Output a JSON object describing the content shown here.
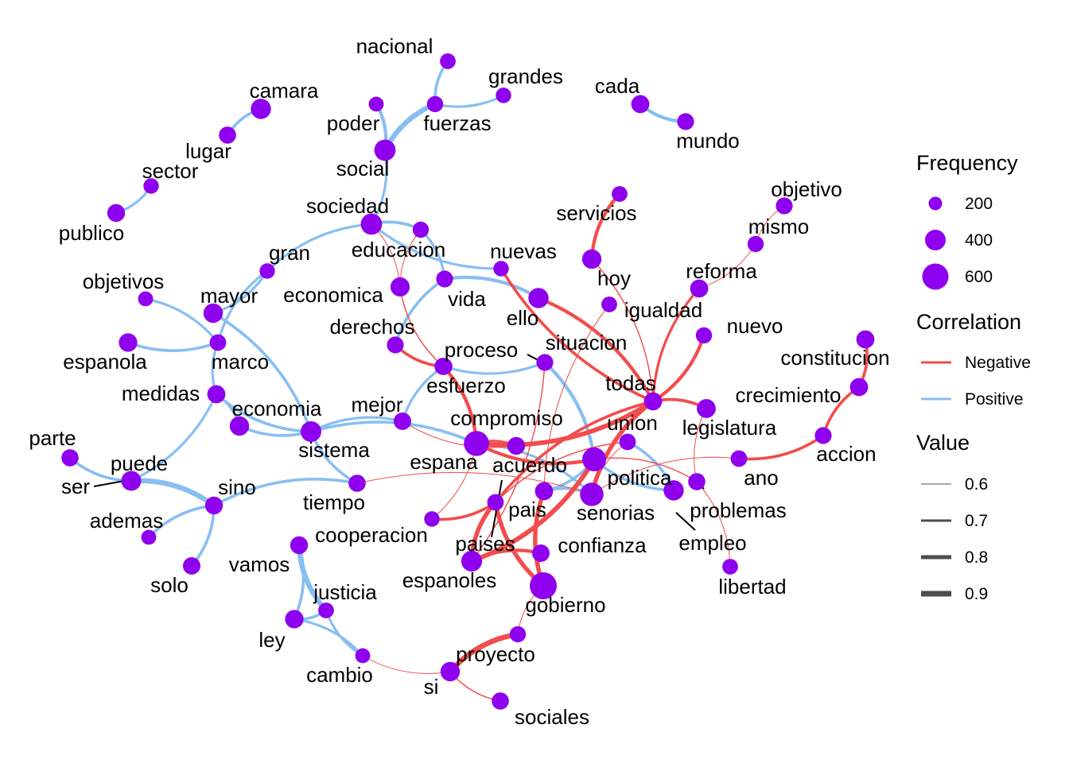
{
  "colors": {
    "node": "#8f00ee",
    "negative": "#f24c4c",
    "positive": "#88bff2",
    "leader": "#000000",
    "legend_line": "#4d4d4d"
  },
  "legend": {
    "frequency": {
      "title": "Frequency",
      "items": [
        "200",
        "400",
        "600"
      ]
    },
    "correlation": {
      "title": "Correlation",
      "items": [
        "Negative",
        "Positive"
      ]
    },
    "value": {
      "title": "Value",
      "items": [
        "0.6",
        "0.7",
        "0.8",
        "0.9"
      ]
    }
  },
  "nodes": [
    {
      "id": "nacional",
      "label": "nacional",
      "freq": 80
    },
    {
      "id": "grandes",
      "label": "grandes",
      "freq": 70
    },
    {
      "id": "fuerzas",
      "label": "fuerzas",
      "freq": 90
    },
    {
      "id": "poder",
      "label": "poder",
      "freq": 60
    },
    {
      "id": "social",
      "label": "social",
      "freq": 280
    },
    {
      "id": "camara",
      "label": "camara",
      "freq": 230
    },
    {
      "id": "lugar",
      "label": "lugar",
      "freq": 120
    },
    {
      "id": "sector",
      "label": "sector",
      "freq": 70
    },
    {
      "id": "publico",
      "label": "publico",
      "freq": 140
    },
    {
      "id": "cada",
      "label": "cada",
      "freq": 150
    },
    {
      "id": "mundo",
      "label": "mundo",
      "freq": 110
    },
    {
      "id": "sociedad",
      "label": "sociedad",
      "freq": 280
    },
    {
      "id": "gran",
      "label": "gran",
      "freq": 70
    },
    {
      "id": "educacion",
      "label": "educacion",
      "freq": 90
    },
    {
      "id": "nuevas",
      "label": "nuevas",
      "freq": 70
    },
    {
      "id": "servicios",
      "label": "servicios",
      "freq": 80
    },
    {
      "id": "objetivo",
      "label": "objetivo",
      "freq": 110
    },
    {
      "id": "mismo",
      "label": "mismo",
      "freq": 90
    },
    {
      "id": "hoy",
      "label": "hoy",
      "freq": 200
    },
    {
      "id": "reforma",
      "label": "reforma",
      "freq": 150
    },
    {
      "id": "igualdad",
      "label": "igualdad",
      "freq": 80
    },
    {
      "id": "nuevo",
      "label": "nuevo",
      "freq": 90
    },
    {
      "id": "objetivos",
      "label": "objetivos",
      "freq": 60
    },
    {
      "id": "mayor",
      "label": "mayor",
      "freq": 200
    },
    {
      "id": "economica",
      "label": "economica",
      "freq": 190
    },
    {
      "id": "vida",
      "label": "vida",
      "freq": 110
    },
    {
      "id": "ello",
      "label": "ello",
      "freq": 230
    },
    {
      "id": "derechos",
      "label": "derechos",
      "freq": 110
    },
    {
      "id": "espanola",
      "label": "espanola",
      "freq": 160
    },
    {
      "id": "marco",
      "label": "marco",
      "freq": 100
    },
    {
      "id": "proceso",
      "label": "proceso",
      "freq": 120
    },
    {
      "id": "situacion",
      "label": "situacion",
      "freq": 110
    },
    {
      "id": "constitucion",
      "label": "constitucion",
      "freq": 150
    },
    {
      "id": "todas",
      "label": "todas",
      "freq": 150
    },
    {
      "id": "esfuerzo",
      "label": "esfuerzo",
      "freq": 120
    },
    {
      "id": "medidas",
      "label": "medidas",
      "freq": 150
    },
    {
      "id": "crecimiento",
      "label": "crecimiento",
      "freq": 150
    },
    {
      "id": "economia",
      "label": "economia",
      "freq": 200
    },
    {
      "id": "mejor",
      "label": "mejor",
      "freq": 130
    },
    {
      "id": "legislatura",
      "label": "legislatura",
      "freq": 180
    },
    {
      "id": "compromiso",
      "label": "compromiso",
      "freq": 500
    },
    {
      "id": "sistema",
      "label": "sistema",
      "freq": 250
    },
    {
      "id": "union",
      "label": "union",
      "freq": 100
    },
    {
      "id": "parte",
      "label": "parte",
      "freq": 120
    },
    {
      "id": "accion",
      "label": "accion",
      "freq": 110
    },
    {
      "id": "puede",
      "label": "puede",
      "freq": 220
    },
    {
      "id": "espana",
      "label": "espana",
      "freq": 140
    },
    {
      "id": "acuerdo",
      "label": "acuerdo",
      "freq": 150
    },
    {
      "id": "politica",
      "label": "politica",
      "freq": 420
    },
    {
      "id": "ano",
      "label": "ano",
      "freq": 100
    },
    {
      "id": "ser",
      "label": "ser",
      "freq": 60
    },
    {
      "id": "sino",
      "label": "sino",
      "freq": 140
    },
    {
      "id": "tiempo",
      "label": "tiempo",
      "freq": 120
    },
    {
      "id": "problemas",
      "label": "problemas",
      "freq": 120
    },
    {
      "id": "senorias",
      "label": "senorias",
      "freq": 400
    },
    {
      "id": "ademas",
      "label": "ademas",
      "freq": 60
    },
    {
      "id": "pais",
      "label": "pais",
      "freq": 100
    },
    {
      "id": "empleo",
      "label": "empleo",
      "freq": 230
    },
    {
      "id": "cooperacion",
      "label": "cooperacion",
      "freq": 140
    },
    {
      "id": "solo",
      "label": "solo",
      "freq": 130
    },
    {
      "id": "vamos",
      "label": "vamos",
      "freq": 60
    },
    {
      "id": "paises",
      "label": "paises",
      "freq": 260
    },
    {
      "id": "confianza",
      "label": "confianza",
      "freq": 130
    },
    {
      "id": "libertad",
      "label": "libertad",
      "freq": 80
    },
    {
      "id": "espanoles",
      "label": "espanoles",
      "freq": 70
    },
    {
      "id": "justicia",
      "label": "justicia",
      "freq": 80
    },
    {
      "id": "gobierno",
      "label": "gobierno",
      "freq": 620
    },
    {
      "id": "ley",
      "label": "ley",
      "freq": 160
    },
    {
      "id": "proyecto",
      "label": "proyecto",
      "freq": 90
    },
    {
      "id": "cambio",
      "label": "cambio",
      "freq": 60
    },
    {
      "id": "si",
      "label": "si",
      "freq": 200
    },
    {
      "id": "sociales",
      "label": "sociales",
      "freq": 120
    }
  ],
  "edges": [
    {
      "from": "nacional",
      "to": "fuerzas",
      "sign": "positive",
      "value": 0.72
    },
    {
      "from": "grandes",
      "to": "fuerzas",
      "sign": "positive",
      "value": 0.7
    },
    {
      "from": "fuerzas",
      "to": "social",
      "sign": "positive",
      "value": 0.85
    },
    {
      "from": "poder",
      "to": "social",
      "sign": "positive",
      "value": 0.75
    },
    {
      "from": "camara",
      "to": "lugar",
      "sign": "positive",
      "value": 0.72
    },
    {
      "from": "sector",
      "to": "publico",
      "sign": "positive",
      "value": 0.7
    },
    {
      "from": "cada",
      "to": "mundo",
      "sign": "positive",
      "value": 0.75
    },
    {
      "from": "social",
      "to": "sociedad",
      "sign": "positive",
      "value": 0.7
    },
    {
      "from": "sociedad",
      "to": "gran",
      "sign": "positive",
      "value": 0.7
    },
    {
      "from": "sociedad",
      "to": "educacion",
      "sign": "positive",
      "value": 0.72
    },
    {
      "from": "sociedad",
      "to": "nuevas",
      "sign": "positive",
      "value": 0.7
    },
    {
      "from": "sociedad",
      "to": "economica",
      "sign": "negative",
      "value": 0.6
    },
    {
      "from": "educacion",
      "to": "economica",
      "sign": "negative",
      "value": 0.6
    },
    {
      "from": "educacion",
      "to": "vida",
      "sign": "positive",
      "value": 0.7
    },
    {
      "from": "vida",
      "to": "derechos",
      "sign": "positive",
      "value": 0.72
    },
    {
      "from": "vida",
      "to": "ello",
      "sign": "positive",
      "value": 0.75
    },
    {
      "from": "economica",
      "to": "esfuerzo",
      "sign": "negative",
      "value": 0.62
    },
    {
      "from": "gran",
      "to": "mayor",
      "sign": "positive",
      "value": 0.7
    },
    {
      "from": "gran",
      "to": "marco",
      "sign": "positive",
      "value": 0.7
    },
    {
      "from": "objetivos",
      "to": "marco",
      "sign": "positive",
      "value": 0.7
    },
    {
      "from": "espanola",
      "to": "marco",
      "sign": "positive",
      "value": 0.72
    },
    {
      "from": "mayor",
      "to": "sistema",
      "sign": "positive",
      "value": 0.72
    },
    {
      "from": "marco",
      "to": "medidas",
      "sign": "positive",
      "value": 0.7
    },
    {
      "from": "medidas",
      "to": "economia",
      "sign": "positive",
      "value": 0.7
    },
    {
      "from": "medidas",
      "to": "sistema",
      "sign": "positive",
      "value": 0.72
    },
    {
      "from": "medidas",
      "to": "puede",
      "sign": "positive",
      "value": 0.7
    },
    {
      "from": "economia",
      "to": "sistema",
      "sign": "positive",
      "value": 0.72
    },
    {
      "from": "sistema",
      "to": "mejor",
      "sign": "positive",
      "value": 0.7
    },
    {
      "from": "sistema",
      "to": "tiempo",
      "sign": "positive",
      "value": 0.72
    },
    {
      "from": "sistema",
      "to": "compromiso",
      "sign": "positive",
      "value": 0.72
    },
    {
      "from": "derechos",
      "to": "esfuerzo",
      "sign": "negative",
      "value": 0.72
    },
    {
      "from": "mejor",
      "to": "proceso",
      "sign": "positive",
      "value": 0.7
    },
    {
      "from": "mejor",
      "to": "espana",
      "sign": "negative",
      "value": 0.6
    },
    {
      "from": "esfuerzo",
      "to": "compromiso",
      "sign": "negative",
      "value": 0.75
    },
    {
      "from": "proceso",
      "to": "situacion",
      "sign": "positive",
      "value": 0.7
    },
    {
      "from": "situacion",
      "to": "politica",
      "sign": "positive",
      "value": 0.75
    },
    {
      "from": "servicios",
      "to": "hoy",
      "sign": "negative",
      "value": 0.75
    },
    {
      "from": "hoy",
      "to": "todas",
      "sign": "negative",
      "value": 0.62
    },
    {
      "from": "nuevas",
      "to": "todas",
      "sign": "negative",
      "value": 0.72
    },
    {
      "from": "ello",
      "to": "todas",
      "sign": "negative",
      "value": 0.75
    },
    {
      "from": "objetivo",
      "to": "mismo",
      "sign": "negative",
      "value": 0.6
    },
    {
      "from": "mismo",
      "to": "reforma",
      "sign": "negative",
      "value": 0.6
    },
    {
      "from": "reforma",
      "to": "todas",
      "sign": "negative",
      "value": 0.7
    },
    {
      "from": "nuevo",
      "to": "todas",
      "sign": "negative",
      "value": 0.75
    },
    {
      "from": "igualdad",
      "to": "acuerdo",
      "sign": "negative",
      "value": 0.6
    },
    {
      "from": "todas",
      "to": "compromiso",
      "sign": "negative",
      "value": 0.82
    },
    {
      "from": "todas",
      "to": "senorias",
      "sign": "negative",
      "value": 0.8
    },
    {
      "from": "todas",
      "to": "legislatura",
      "sign": "negative",
      "value": 0.72
    },
    {
      "from": "todas",
      "to": "pais",
      "sign": "negative",
      "value": 0.72
    },
    {
      "from": "union",
      "to": "empleo",
      "sign": "positive",
      "value": 0.72
    },
    {
      "from": "union",
      "to": "pais",
      "sign": "negative",
      "value": 0.62
    },
    {
      "from": "compromiso",
      "to": "espana",
      "sign": "negative",
      "value": 0.7
    },
    {
      "from": "compromiso",
      "to": "politica",
      "sign": "negative",
      "value": 0.75
    },
    {
      "from": "compromiso",
      "to": "senorias",
      "sign": "positive",
      "value": 0.7
    },
    {
      "from": "acuerdo",
      "to": "politica",
      "sign": "positive",
      "value": 0.72
    },
    {
      "from": "acuerdo",
      "to": "senorias",
      "sign": "positive",
      "value": 0.72
    },
    {
      "from": "acuerdo",
      "to": "gobierno",
      "sign": "negative",
      "value": 0.8
    },
    {
      "from": "politica",
      "to": "problemas",
      "sign": "negative",
      "value": 0.62
    },
    {
      "from": "politica",
      "to": "empleo",
      "sign": "positive",
      "value": 0.72
    },
    {
      "from": "politica",
      "to": "paises",
      "sign": "negative",
      "value": 0.82
    },
    {
      "from": "legislatura",
      "to": "problemas",
      "sign": "negative",
      "value": 0.6
    },
    {
      "from": "constitucion",
      "to": "crecimiento",
      "sign": "negative",
      "value": 0.72
    },
    {
      "from": "crecimiento",
      "to": "accion",
      "sign": "negative",
      "value": 0.72
    },
    {
      "from": "accion",
      "to": "ano",
      "sign": "negative",
      "value": 0.72
    },
    {
      "from": "ano",
      "to": "senorias",
      "sign": "negative",
      "value": 0.6
    },
    {
      "from": "problemas",
      "to": "libertad",
      "sign": "negative",
      "value": 0.6
    },
    {
      "from": "parte",
      "to": "puede",
      "sign": "positive",
      "value": 0.72
    },
    {
      "from": "puede",
      "to": "sino",
      "sign": "positive",
      "value": 0.85
    },
    {
      "from": "sino",
      "to": "ademas",
      "sign": "positive",
      "value": 0.72
    },
    {
      "from": "sino",
      "to": "solo",
      "sign": "positive",
      "value": 0.72
    },
    {
      "from": "tiempo",
      "to": "sino",
      "sign": "positive",
      "value": 0.72
    },
    {
      "from": "tiempo",
      "to": "senorias",
      "sign": "negative",
      "value": 0.6
    },
    {
      "from": "pais",
      "to": "gobierno",
      "sign": "negative",
      "value": 0.8
    },
    {
      "from": "pais",
      "to": "espanoles",
      "sign": "negative",
      "value": 0.72
    },
    {
      "from": "pais",
      "to": "paises",
      "sign": "negative",
      "value": 0.8
    },
    {
      "from": "paises",
      "to": "confianza",
      "sign": "negative",
      "value": 0.75
    },
    {
      "from": "espanoles",
      "to": "compromiso",
      "sign": "negative",
      "value": 0.6
    },
    {
      "from": "cooperacion",
      "to": "ley",
      "sign": "positive",
      "value": 0.72
    },
    {
      "from": "cooperacion",
      "to": "justicia",
      "sign": "positive",
      "value": 0.85
    },
    {
      "from": "justicia",
      "to": "ley",
      "sign": "positive",
      "value": 0.72
    },
    {
      "from": "justicia",
      "to": "cambio",
      "sign": "positive",
      "value": 0.7
    },
    {
      "from": "ley",
      "to": "cambio",
      "sign": "positive",
      "value": 0.7
    },
    {
      "from": "cambio",
      "to": "si",
      "sign": "negative",
      "value": 0.6
    },
    {
      "from": "si",
      "to": "proyecto",
      "sign": "negative",
      "value": 0.85
    },
    {
      "from": "si",
      "to": "sociales",
      "sign": "negative",
      "value": 0.62
    },
    {
      "from": "proyecto",
      "to": "gobierno",
      "sign": "negative",
      "value": 0.6
    },
    {
      "from": "confianza",
      "to": "gobierno",
      "sign": "negative",
      "value": 0.62
    },
    {
      "from": "situacion",
      "to": "paises",
      "sign": "negative",
      "value": 0.62
    },
    {
      "from": "union",
      "to": "senorias",
      "sign": "negative",
      "value": 0.6
    }
  ]
}
